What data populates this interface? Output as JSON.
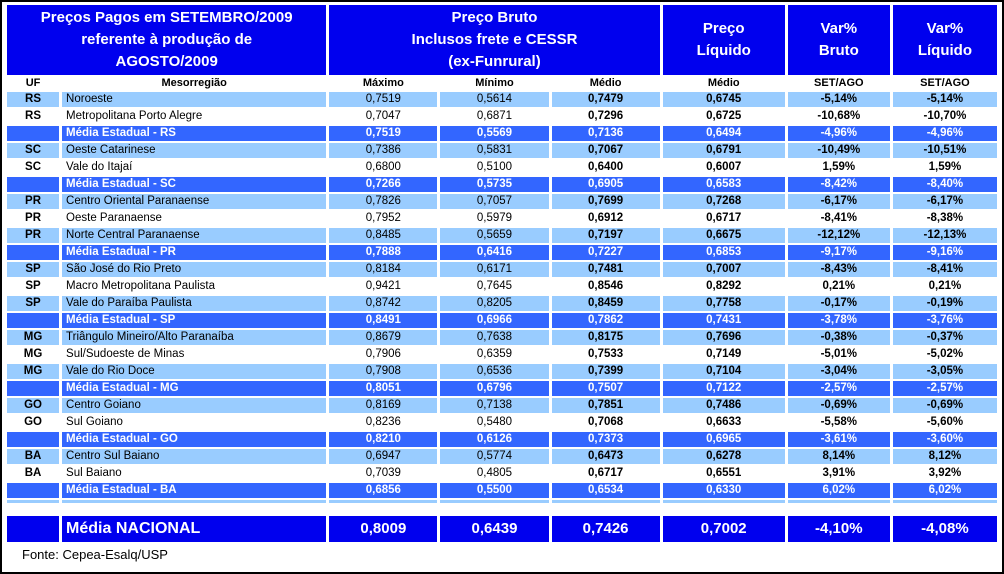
{
  "header": {
    "title": "Preços Pagos em SETEMBRO/2009\nreferente à produção de\nAGOSTO/2009",
    "preco_bruto": "Preço Bruto\nInclusos frete e CESSR\n(ex-Funrural)",
    "preco_liquido": "Preço\nLíquido",
    "var_bruto": "Var%\nBruto",
    "var_liquido": "Var%\nLíquido"
  },
  "subheader": [
    "UF",
    "Mesorregião",
    "Máximo",
    "Mínimo",
    "Médio",
    "Médio",
    "SET/AGO",
    "SET/AGO"
  ],
  "rows": [
    {
      "uf": "RS",
      "name": "Noroeste",
      "max": "0,7519",
      "min": "0,5614",
      "medio": "0,7479",
      "liquido": "0,6745",
      "var_bruto": "-5,14%",
      "var_liquido": "-5,14%",
      "style": "light"
    },
    {
      "uf": "RS",
      "name": "Metropolitana Porto Alegre",
      "max": "0,7047",
      "min": "0,6871",
      "medio": "0,7296",
      "liquido": "0,6725",
      "var_bruto": "-10,68%",
      "var_liquido": "-10,70%",
      "style": "white"
    },
    {
      "uf": "",
      "name": "Média Estadual - RS",
      "max": "0,7519",
      "min": "0,5569",
      "medio": "0,7136",
      "liquido": "0,6494",
      "var_bruto": "-4,96%",
      "var_liquido": "-4,96%",
      "style": "avg"
    },
    {
      "uf": "SC",
      "name": "Oeste Catarinese",
      "max": "0,7386",
      "min": "0,5831",
      "medio": "0,7067",
      "liquido": "0,6791",
      "var_bruto": "-10,49%",
      "var_liquido": "-10,51%",
      "style": "light"
    },
    {
      "uf": "SC",
      "name": "Vale do Itajaí",
      "max": "0,6800",
      "min": "0,5100",
      "medio": "0,6400",
      "liquido": "0,6007",
      "var_bruto": "1,59%",
      "var_liquido": "1,59%",
      "style": "white"
    },
    {
      "uf": "",
      "name": "Média Estadual - SC",
      "max": "0,7266",
      "min": "0,5735",
      "medio": "0,6905",
      "liquido": "0,6583",
      "var_bruto": "-8,42%",
      "var_liquido": "-8,40%",
      "style": "avg"
    },
    {
      "uf": "PR",
      "name": "Centro Oriental Paranaense",
      "max": "0,7826",
      "min": "0,7057",
      "medio": "0,7699",
      "liquido": "0,7268",
      "var_bruto": "-6,17%",
      "var_liquido": "-6,17%",
      "style": "light"
    },
    {
      "uf": "PR",
      "name": "Oeste Paranaense",
      "max": "0,7952",
      "min": "0,5979",
      "medio": "0,6912",
      "liquido": "0,6717",
      "var_bruto": "-8,41%",
      "var_liquido": "-8,38%",
      "style": "white"
    },
    {
      "uf": "PR",
      "name": "Norte Central Paranaense",
      "max": "0,8485",
      "min": "0,5659",
      "medio": "0,7197",
      "liquido": "0,6675",
      "var_bruto": "-12,12%",
      "var_liquido": "-12,13%",
      "style": "light"
    },
    {
      "uf": "",
      "name": "Média Estadual - PR",
      "max": "0,7888",
      "min": "0,6416",
      "medio": "0,7227",
      "liquido": "0,6853",
      "var_bruto": "-9,17%",
      "var_liquido": "-9,16%",
      "style": "avg"
    },
    {
      "uf": "SP",
      "name": "São José do Rio Preto",
      "max": "0,8184",
      "min": "0,6171",
      "medio": "0,7481",
      "liquido": "0,7007",
      "var_bruto": "-8,43%",
      "var_liquido": "-8,41%",
      "style": "light"
    },
    {
      "uf": "SP",
      "name": "Macro Metropolitana Paulista",
      "max": "0,9421",
      "min": "0,7645",
      "medio": "0,8546",
      "liquido": "0,8292",
      "var_bruto": "0,21%",
      "var_liquido": "0,21%",
      "style": "white"
    },
    {
      "uf": "SP",
      "name": "Vale do Paraíba Paulista",
      "max": "0,8742",
      "min": "0,8205",
      "medio": "0,8459",
      "liquido": "0,7758",
      "var_bruto": "-0,17%",
      "var_liquido": "-0,19%",
      "style": "light"
    },
    {
      "uf": "",
      "name": "Média Estadual - SP",
      "max": "0,8491",
      "min": "0,6966",
      "medio": "0,7862",
      "liquido": "0,7431",
      "var_bruto": "-3,78%",
      "var_liquido": "-3,76%",
      "style": "avg"
    },
    {
      "uf": "MG",
      "name": "Triângulo Mineiro/Alto Paranaíba",
      "max": "0,8679",
      "min": "0,7638",
      "medio": "0,8175",
      "liquido": "0,7696",
      "var_bruto": "-0,38%",
      "var_liquido": "-0,37%",
      "style": "light"
    },
    {
      "uf": "MG",
      "name": "Sul/Sudoeste de Minas",
      "max": "0,7906",
      "min": "0,6359",
      "medio": "0,7533",
      "liquido": "0,7149",
      "var_bruto": "-5,01%",
      "var_liquido": "-5,02%",
      "style": "white"
    },
    {
      "uf": "MG",
      "name": "Vale do Rio Doce",
      "max": "0,7908",
      "min": "0,6536",
      "medio": "0,7399",
      "liquido": "0,7104",
      "var_bruto": "-3,04%",
      "var_liquido": "-3,05%",
      "style": "light"
    },
    {
      "uf": "",
      "name": "Média Estadual - MG",
      "max": "0,8051",
      "min": "0,6796",
      "medio": "0,7507",
      "liquido": "0,7122",
      "var_bruto": "-2,57%",
      "var_liquido": "-2,57%",
      "style": "avg"
    },
    {
      "uf": "GO",
      "name": "Centro Goiano",
      "max": "0,8169",
      "min": "0,7138",
      "medio": "0,7851",
      "liquido": "0,7486",
      "var_bruto": "-0,69%",
      "var_liquido": "-0,69%",
      "style": "light"
    },
    {
      "uf": "GO",
      "name": "Sul Goiano",
      "max": "0,8236",
      "min": "0,5480",
      "medio": "0,7068",
      "liquido": "0,6633",
      "var_bruto": "-5,58%",
      "var_liquido": "-5,60%",
      "style": "white"
    },
    {
      "uf": "",
      "name": "Média Estadual - GO",
      "max": "0,8210",
      "min": "0,6126",
      "medio": "0,7373",
      "liquido": "0,6965",
      "var_bruto": "-3,61%",
      "var_liquido": "-3,60%",
      "style": "avg"
    },
    {
      "uf": "BA",
      "name": "Centro Sul Baiano",
      "max": "0,6947",
      "min": "0,5774",
      "medio": "0,6473",
      "liquido": "0,6278",
      "var_bruto": "8,14%",
      "var_liquido": "8,12%",
      "style": "light"
    },
    {
      "uf": "BA",
      "name": "Sul Baiano",
      "max": "0,7039",
      "min": "0,4805",
      "medio": "0,6717",
      "liquido": "0,6551",
      "var_bruto": "3,91%",
      "var_liquido": "3,92%",
      "style": "white"
    },
    {
      "uf": "",
      "name": "Média Estadual - BA",
      "max": "0,6856",
      "min": "0,5500",
      "medio": "0,6534",
      "liquido": "0,6330",
      "var_bruto": "6,02%",
      "var_liquido": "6,02%",
      "style": "avg"
    }
  ],
  "national": {
    "label": "Média NACIONAL",
    "max": "0,8009",
    "min": "0,6439",
    "medio": "0,7426",
    "liquido": "0,7002",
    "var_bruto": "-4,10%",
    "var_liquido": "-4,08%"
  },
  "footer": "Fonte: Cepea-Esalq/USP",
  "colors": {
    "header_blue": "#0000EE",
    "state_avg_blue": "#3366FF",
    "light_row": "#99CCFF",
    "grid_white": "#FFFFFF",
    "text_dark": "#000000"
  }
}
